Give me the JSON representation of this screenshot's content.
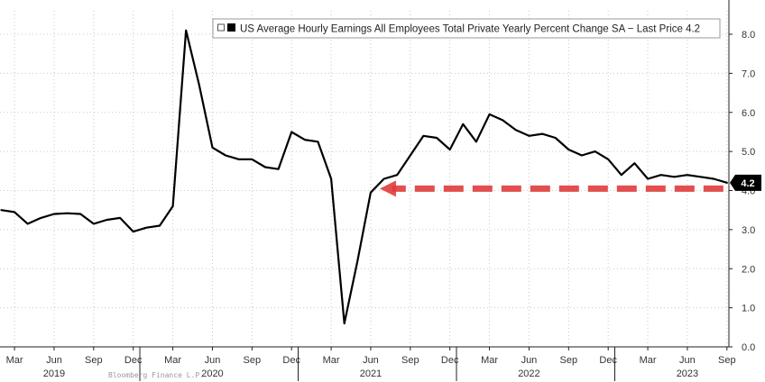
{
  "chart_data": {
    "type": "line",
    "title": "",
    "xlabel": "",
    "ylabel": "",
    "legend": {
      "label": "US Average Hourly Earnings All Employees Total Private Yearly Percent Change SA",
      "last_price_label": "Last Price",
      "last_price_value": "4.2",
      "placement": "top"
    },
    "ylim": [
      0,
      8.6
    ],
    "yticks": [
      "0.0",
      "1.0",
      "2.0",
      "3.0",
      "4.0",
      "5.0",
      "6.0",
      "7.0",
      "8.0"
    ],
    "ytick_values": [
      0,
      1,
      2,
      3,
      4,
      5,
      6,
      7,
      8
    ],
    "xlim": [
      "2019-02",
      "2023-09"
    ],
    "x_tick_labels": [
      {
        "month": "2019-03",
        "label": "Mar"
      },
      {
        "month": "2019-06",
        "label": "Jun"
      },
      {
        "month": "2019-09",
        "label": "Sep"
      },
      {
        "month": "2019-12",
        "label": "Dec"
      },
      {
        "month": "2020-03",
        "label": "Mar"
      },
      {
        "month": "2020-06",
        "label": "Jun"
      },
      {
        "month": "2020-09",
        "label": "Sep"
      },
      {
        "month": "2020-12",
        "label": "Dec"
      },
      {
        "month": "2021-03",
        "label": "Mar"
      },
      {
        "month": "2021-06",
        "label": "Jun"
      },
      {
        "month": "2021-09",
        "label": "Sep"
      },
      {
        "month": "2021-12",
        "label": "Dec"
      },
      {
        "month": "2022-03",
        "label": "Mar"
      },
      {
        "month": "2022-06",
        "label": "Jun"
      },
      {
        "month": "2022-09",
        "label": "Sep"
      },
      {
        "month": "2022-12",
        "label": "Dec"
      },
      {
        "month": "2023-03",
        "label": "Mar"
      },
      {
        "month": "2023-06",
        "label": "Jun"
      },
      {
        "month": "2023-09",
        "label": "Sep"
      }
    ],
    "year_labels": [
      {
        "month": "2019-06",
        "label": "2019"
      },
      {
        "month": "2020-06",
        "label": "2020"
      },
      {
        "month": "2021-06",
        "label": "2021"
      },
      {
        "month": "2022-06",
        "label": "2022"
      },
      {
        "month": "2023-06",
        "label": "2023"
      }
    ],
    "grid": true,
    "series": [
      {
        "color": "#000000",
        "x": [
          "2019-02",
          "2019-03",
          "2019-04",
          "2019-05",
          "2019-06",
          "2019-07",
          "2019-08",
          "2019-09",
          "2019-10",
          "2019-11",
          "2019-12",
          "2020-01",
          "2020-02",
          "2020-03",
          "2020-04",
          "2020-05",
          "2020-06",
          "2020-07",
          "2020-08",
          "2020-09",
          "2020-10",
          "2020-11",
          "2020-12",
          "2021-01",
          "2021-02",
          "2021-03",
          "2021-04",
          "2021-05",
          "2021-06",
          "2021-07",
          "2021-08",
          "2021-09",
          "2021-10",
          "2021-11",
          "2021-12",
          "2022-01",
          "2022-02",
          "2022-03",
          "2022-04",
          "2022-05",
          "2022-06",
          "2022-07",
          "2022-08",
          "2022-09",
          "2022-10",
          "2022-11",
          "2022-12",
          "2023-01",
          "2023-02",
          "2023-03",
          "2023-04",
          "2023-05",
          "2023-06",
          "2023-07",
          "2023-08",
          "2023-09"
        ],
        "y": [
          3.5,
          3.45,
          3.15,
          3.3,
          3.4,
          3.42,
          3.4,
          3.15,
          3.25,
          3.3,
          2.95,
          3.05,
          3.1,
          3.6,
          8.1,
          6.7,
          5.1,
          4.9,
          4.8,
          4.8,
          4.6,
          4.55,
          5.5,
          5.3,
          5.25,
          4.3,
          0.6,
          2.2,
          3.95,
          4.3,
          4.4,
          4.9,
          5.4,
          5.35,
          5.05,
          5.7,
          5.25,
          5.95,
          5.8,
          5.55,
          5.4,
          5.45,
          5.35,
          5.05,
          4.9,
          5.0,
          4.8,
          4.4,
          4.7,
          4.3,
          4.4,
          4.35,
          4.4,
          4.35,
          4.3,
          4.2
        ]
      }
    ],
    "annotation": {
      "type": "dashed-arrow",
      "color": "#e03b3b",
      "y": 4.05,
      "from": "2023-09",
      "to": "2021-06"
    }
  },
  "footnote": "Bloomberg Finance L.P."
}
